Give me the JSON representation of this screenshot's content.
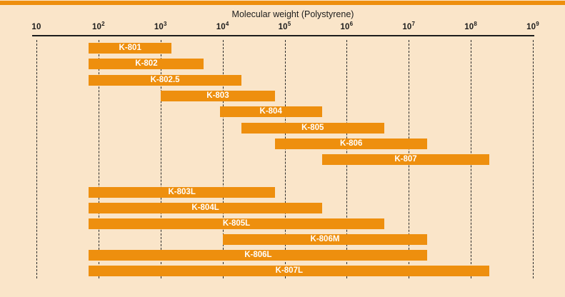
{
  "colors": {
    "bar": "#EE8F0E",
    "background": "#FAE5C9",
    "accent_strip": "#EE8F0E",
    "axis": "#1C1C1C",
    "bar_label": "#FFFFFF"
  },
  "chart_data": {
    "type": "bar",
    "orientation": "horizontal-range",
    "title": "Molecular weight (Polystyrene)",
    "x_axis": {
      "scale": "log10",
      "min": 10,
      "max": 1000000000,
      "grid": "dashed-vertical"
    },
    "ticks": [
      {
        "base": "10",
        "exp": ""
      },
      {
        "base": "10",
        "exp": "2"
      },
      {
        "base": "10",
        "exp": "3"
      },
      {
        "base": "10",
        "exp": "4"
      },
      {
        "base": "10",
        "exp": "5"
      },
      {
        "base": "10",
        "exp": "6"
      },
      {
        "base": "10",
        "exp": "7"
      },
      {
        "base": "10",
        "exp": "8"
      },
      {
        "base": "10",
        "exp": "9"
      }
    ],
    "bars": [
      {
        "label": "K-801",
        "from": 70,
        "to": 1500,
        "group": 1
      },
      {
        "label": "K-802",
        "from": 70,
        "to": 5000,
        "group": 1
      },
      {
        "label": "K-802.5",
        "from": 70,
        "to": 20000,
        "group": 1
      },
      {
        "label": "K-803",
        "from": 1000,
        "to": 70000,
        "group": 1
      },
      {
        "label": "K-804",
        "from": 9000,
        "to": 400000,
        "group": 1
      },
      {
        "label": "K-805",
        "from": 20000,
        "to": 4000000,
        "group": 1
      },
      {
        "label": "K-806",
        "from": 70000,
        "to": 20000000,
        "group": 1
      },
      {
        "label": "K-807",
        "from": 400000,
        "to": 200000000,
        "group": 1
      },
      {
        "label": "K-803L",
        "from": 70,
        "to": 70000,
        "group": 2
      },
      {
        "label": "K-804L",
        "from": 70,
        "to": 400000,
        "group": 2
      },
      {
        "label": "K-805L",
        "from": 70,
        "to": 4000000,
        "group": 2
      },
      {
        "label": "K-806M",
        "from": 10000,
        "to": 20000000,
        "group": 2
      },
      {
        "label": "K-806L",
        "from": 70,
        "to": 20000000,
        "group": 2
      },
      {
        "label": "K-807L",
        "from": 70,
        "to": 200000000,
        "group": 2
      }
    ]
  }
}
